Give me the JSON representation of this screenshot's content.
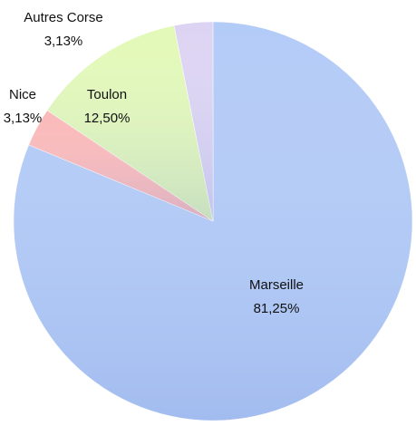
{
  "chart_data": {
    "type": "pie",
    "categories": [
      "Marseille",
      "Nice",
      "Toulon",
      "Autres Corse"
    ],
    "values": [
      81.25,
      3.13,
      12.5,
      3.13
    ],
    "value_labels": [
      "81,25%",
      "3,13%",
      "12,50%",
      "3,13%"
    ],
    "colors": [
      "#b3cbf7",
      "#fbb9b9",
      "#e3f9b8",
      "#ddd4f3"
    ]
  }
}
